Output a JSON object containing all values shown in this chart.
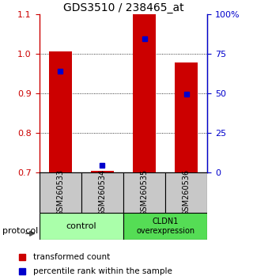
{
  "title": "GDS3510 / 238465_at",
  "samples": [
    "GSM260533",
    "GSM260534",
    "GSM260535",
    "GSM260536"
  ],
  "red_bars": [
    1.005,
    0.703,
    1.1,
    0.978
  ],
  "blue_dots": [
    0.955,
    0.718,
    1.038,
    0.898
  ],
  "bar_bottom": 0.7,
  "ylim_left": [
    0.7,
    1.1
  ],
  "ylim_right": [
    0,
    100
  ],
  "yticks_left": [
    0.7,
    0.8,
    0.9,
    1.0,
    1.1
  ],
  "yticks_right": [
    0,
    25,
    50,
    75,
    100
  ],
  "ytick_labels_right": [
    "0",
    "25",
    "50",
    "75",
    "100%"
  ],
  "bar_color": "#CC0000",
  "dot_color": "#0000CC",
  "bar_width": 0.55,
  "background_color": "#ffffff",
  "sample_box_color": "#C8C8C8",
  "control_color": "#AAFFAA",
  "cldn1_color": "#55DD55",
  "legend_items": [
    "transformed count",
    "percentile rank within the sample"
  ]
}
